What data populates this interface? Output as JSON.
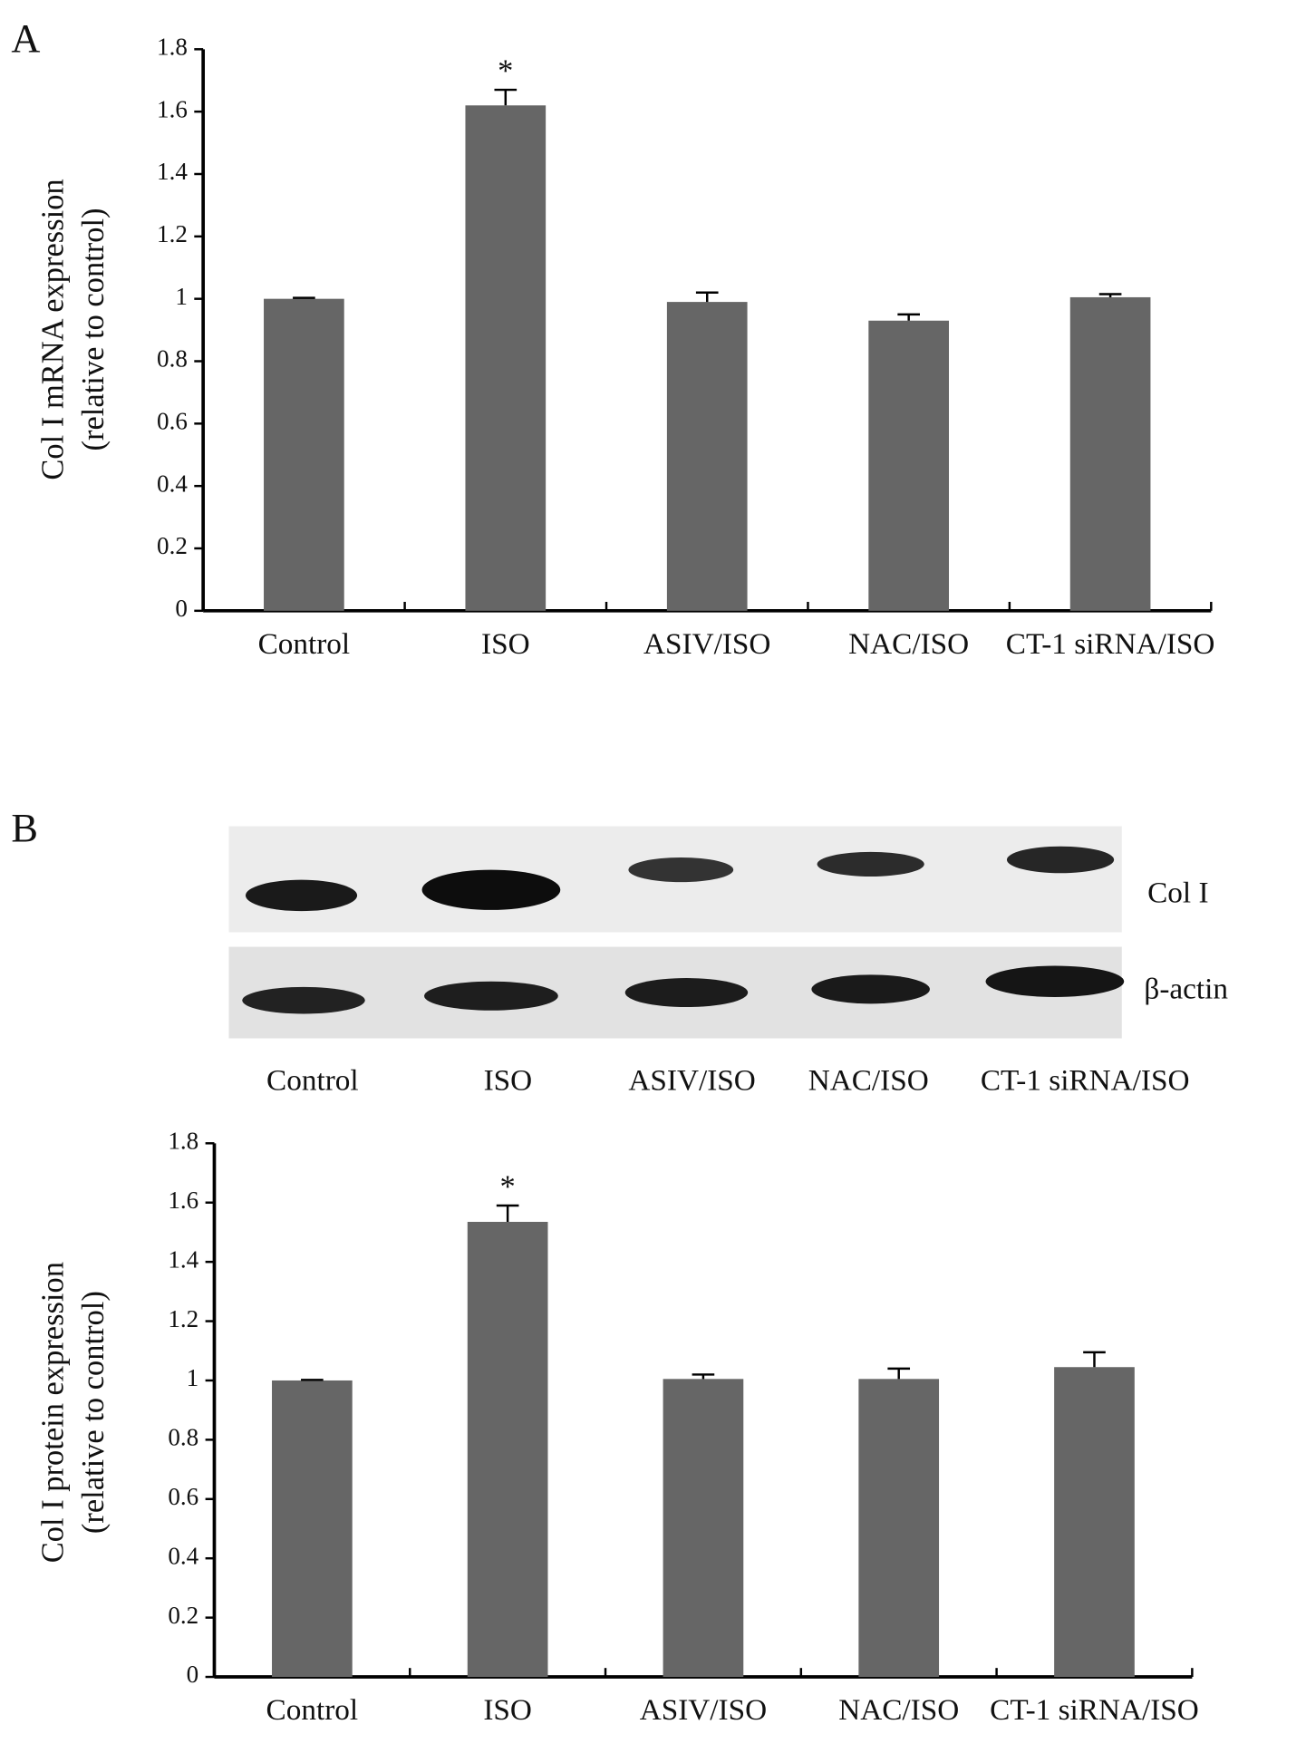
{
  "panel_labels": [
    "A",
    "B"
  ],
  "blot": {
    "rows": [
      "Col I",
      "β-actin"
    ],
    "lanes": [
      "Control",
      "ISO",
      "ASIV/ISO",
      "NAC/ISO",
      "CT-1 siRNA/ISO"
    ]
  },
  "chart_data": [
    {
      "type": "bar",
      "ylabel": [
        "Col I mRNA expression",
        "(relative to control)"
      ],
      "categories": [
        "Control",
        "ISO",
        "ASIV/ISO",
        "NAC/ISO",
        "CT-1 siRNA/ISO"
      ],
      "values": [
        1.0,
        1.62,
        0.99,
        0.93,
        1.005
      ],
      "errors": [
        0.003,
        0.05,
        0.03,
        0.02,
        0.01
      ],
      "color": "#666666",
      "ylim": [
        0,
        1.8
      ],
      "yticks": [
        0,
        0.2,
        0.4,
        0.6,
        0.8,
        1,
        1.2,
        1.4,
        1.6,
        1.8
      ],
      "annotations": [
        {
          "text": "*",
          "x": "ISO"
        }
      ]
    },
    {
      "type": "bar",
      "ylabel": [
        "Col I protein expression",
        "(relative to control)"
      ],
      "categories": [
        "Control",
        "ISO",
        "ASIV/ISO",
        "NAC/ISO",
        "CT-1 siRNA/ISO"
      ],
      "values": [
        1.0,
        1.535,
        1.005,
        1.005,
        1.045
      ],
      "errors": [
        0.002,
        0.055,
        0.015,
        0.035,
        0.05
      ],
      "color": "#666666",
      "ylim": [
        0,
        1.8
      ],
      "yticks": [
        0,
        0.2,
        0.4,
        0.6,
        0.8,
        1,
        1.2,
        1.4,
        1.6,
        1.8
      ],
      "annotations": [
        {
          "text": "*",
          "x": "ISO"
        }
      ]
    }
  ]
}
